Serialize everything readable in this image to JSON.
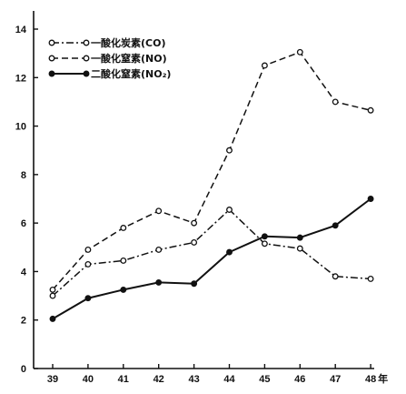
{
  "chart_data": {
    "type": "line",
    "x": [
      "39",
      "40",
      "41",
      "42",
      "43",
      "44",
      "45",
      "46",
      "47",
      "48"
    ],
    "x_suffix_last": "年",
    "ylim": [
      0,
      14
    ],
    "yticks": [
      0,
      2,
      4,
      6,
      8,
      10,
      12,
      14
    ],
    "grid": false,
    "legend_position": "top-left",
    "series": [
      {
        "name": "一酸化炭素(CO)",
        "style": "dash-dot",
        "marker": "open-circle",
        "values": [
          3.0,
          4.3,
          4.45,
          4.9,
          5.2,
          6.55,
          5.15,
          4.95,
          3.8,
          3.7
        ]
      },
      {
        "name": "一酸化窒素(NO)",
        "style": "dashed",
        "marker": "open-circle",
        "values": [
          3.25,
          4.9,
          5.8,
          6.5,
          6.0,
          9.0,
          12.5,
          13.05,
          11.0,
          10.65
        ]
      },
      {
        "name": "二酸化窒素(NO₂)",
        "style": "solid",
        "marker": "filled-circle",
        "values": [
          2.05,
          2.9,
          3.25,
          3.55,
          3.5,
          4.8,
          5.45,
          5.4,
          5.9,
          7.0
        ]
      }
    ],
    "colors": {
      "ink": "#111111",
      "background": "#ffffff"
    }
  }
}
